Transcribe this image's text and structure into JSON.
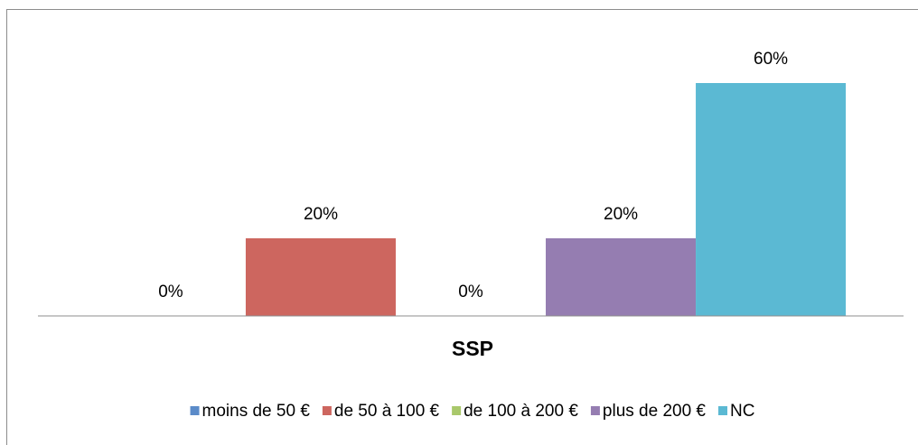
{
  "chart_data": {
    "type": "bar",
    "title": "SSP",
    "categories": [
      "SSP"
    ],
    "series": [
      {
        "name": "moins de 50 €",
        "color": "#5b8bc9",
        "values": [
          0
        ],
        "value_labels": [
          "0%"
        ]
      },
      {
        "name": "de 50 à 100 €",
        "color": "#cd665f",
        "values": [
          20
        ],
        "value_labels": [
          "20%"
        ]
      },
      {
        "name": "de 100 à 200 €",
        "color": "#a9c86b",
        "values": [
          0
        ],
        "value_labels": [
          "0%"
        ]
      },
      {
        "name": "plus de 200 €",
        "color": "#957db1",
        "values": [
          20
        ],
        "value_labels": [
          "20%"
        ]
      },
      {
        "name": "NC",
        "color": "#5bb9d3",
        "values": [
          60
        ],
        "value_labels": [
          "60%"
        ]
      }
    ],
    "ylim": [
      0,
      70
    ],
    "legend": "bottom"
  }
}
